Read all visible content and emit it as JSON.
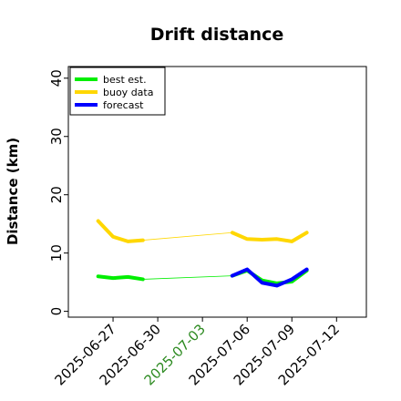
{
  "chart_data": {
    "type": "line",
    "title": "Drift distance",
    "xlabel": "",
    "ylabel": "Distance (km)",
    "ylim": [
      -1,
      42
    ],
    "xlim": [
      "2025-06-24",
      "2025-07-14"
    ],
    "grid": false,
    "legend_placement": "top-left",
    "x_ticks": [
      {
        "date": "2025-06-27",
        "label": "2025-06-27",
        "color": "#000000"
      },
      {
        "date": "2025-06-30",
        "label": "2025-06-30",
        "color": "#000000"
      },
      {
        "date": "2025-07-03",
        "label": "2025-07-03",
        "color": "#2e8b22"
      },
      {
        "date": "2025-07-06",
        "label": "2025-07-06",
        "color": "#000000"
      },
      {
        "date": "2025-07-09",
        "label": "2025-07-09",
        "color": "#000000"
      },
      {
        "date": "2025-07-12",
        "label": "2025-07-12",
        "color": "#000000"
      }
    ],
    "y_ticks": [
      0,
      10,
      20,
      30,
      40
    ],
    "series": [
      {
        "name": "buoy data",
        "color": "#ffd700",
        "segments": [
          [
            [
              "2025-06-26",
              15.5
            ],
            [
              "2025-06-27",
              12.8
            ],
            [
              "2025-06-28",
              12.0
            ],
            [
              "2025-06-29",
              12.2
            ]
          ],
          [
            [
              "2025-07-05",
              13.5
            ],
            [
              "2025-07-06",
              12.4
            ],
            [
              "2025-07-07",
              12.3
            ],
            [
              "2025-07-08",
              12.4
            ],
            [
              "2025-07-09",
              12.0
            ],
            [
              "2025-07-10",
              13.5
            ]
          ]
        ],
        "connector": [
          [
            "2025-06-29",
            12.2
          ],
          [
            "2025-07-05",
            13.5
          ]
        ]
      },
      {
        "name": "best est.",
        "color": "#00ee00",
        "segments": [
          [
            [
              "2025-06-26",
              6.0
            ],
            [
              "2025-06-27",
              5.7
            ],
            [
              "2025-06-28",
              5.9
            ],
            [
              "2025-06-29",
              5.5
            ]
          ],
          [
            [
              "2025-07-05",
              6.1
            ],
            [
              "2025-07-06",
              7.0
            ],
            [
              "2025-07-07",
              5.3
            ],
            [
              "2025-07-08",
              4.8
            ],
            [
              "2025-07-09",
              5.1
            ],
            [
              "2025-07-10",
              7.0
            ]
          ]
        ],
        "connector": [
          [
            "2025-06-29",
            5.5
          ],
          [
            "2025-07-05",
            6.1
          ]
        ]
      },
      {
        "name": "forecast",
        "color": "#0000ff",
        "segments": [
          [
            [
              "2025-07-05",
              6.1
            ],
            [
              "2025-07-06",
              7.2
            ],
            [
              "2025-07-07",
              4.9
            ],
            [
              "2025-07-08",
              4.4
            ],
            [
              "2025-07-09",
              5.5
            ],
            [
              "2025-07-10",
              7.2
            ]
          ]
        ]
      }
    ],
    "legend_order": [
      "best est.",
      "buoy data",
      "forecast"
    ]
  }
}
